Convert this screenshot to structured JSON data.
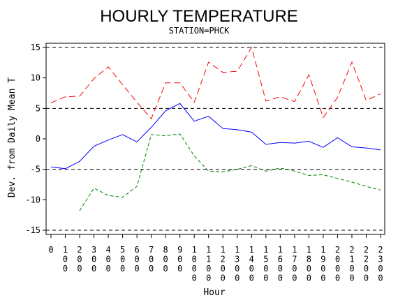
{
  "chart_data": {
    "type": "line",
    "title": "HOURLY TEMPERATURE",
    "subtitle": "STATION=PHCK",
    "xlabel": "Hour",
    "ylabel": "Dev. from Daily Mean T",
    "ylim": [
      -15,
      15
    ],
    "yticks": [
      -15,
      -10,
      -5,
      0,
      5,
      10,
      15
    ],
    "reference_lines": [
      -15,
      -5,
      5,
      15
    ],
    "x": [
      0,
      100,
      200,
      300,
      400,
      500,
      600,
      700,
      800,
      900,
      1000,
      1100,
      1200,
      1300,
      1400,
      1500,
      1600,
      1700,
      1800,
      1900,
      2000,
      2100,
      2200,
      2300
    ],
    "xtick_labels": [
      "0",
      "100",
      "200",
      "300",
      "400",
      "500",
      "600",
      "700",
      "800",
      "900",
      "1000",
      "1100",
      "1200",
      "1300",
      "1400",
      "1500",
      "1600",
      "1700",
      "1800",
      "1900",
      "2000",
      "2100",
      "2200",
      "2300"
    ],
    "series": [
      {
        "color": "#ff0000",
        "dash": "dashed-long",
        "values": [
          5.9,
          6.9,
          7.0,
          9.9,
          11.8,
          8.9,
          6.0,
          3.3,
          9.2,
          9.2,
          6.0,
          12.6,
          10.9,
          11.1,
          15.0,
          6.2,
          6.9,
          6.1,
          10.5,
          3.5,
          6.8,
          12.6,
          6.3,
          7.4
        ]
      },
      {
        "color": "#0000ff",
        "dash": "solid",
        "values": [
          -4.6,
          -4.9,
          -3.7,
          -1.2,
          -0.2,
          0.7,
          -0.5,
          1.9,
          4.6,
          5.8,
          2.9,
          3.7,
          1.7,
          1.5,
          1.1,
          -0.9,
          -0.6,
          -0.7,
          -0.4,
          -1.4,
          0.2,
          -1.3,
          -1.5,
          -1.8
        ]
      },
      {
        "color": "#008000",
        "dash": "dashed-short",
        "values": [
          null,
          null,
          -11.8,
          -8.1,
          -9.3,
          -9.6,
          -7.8,
          0.7,
          0.5,
          0.8,
          -2.8,
          -5.3,
          -5.4,
          -5.0,
          -4.4,
          -5.3,
          -4.8,
          -5.3,
          -6.0,
          -5.9,
          -6.5,
          -7.1,
          -7.8,
          -8.4
        ]
      }
    ]
  }
}
